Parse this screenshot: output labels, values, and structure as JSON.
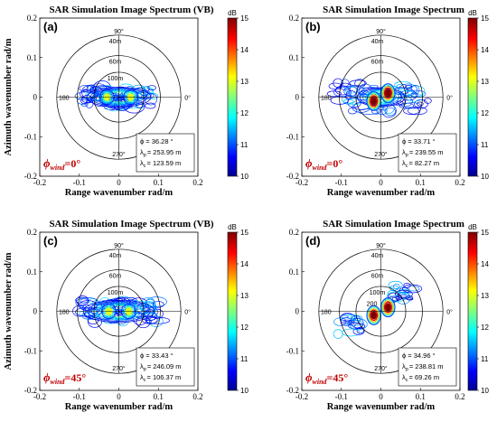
{
  "chart_data": [
    {
      "type": "contour",
      "panel": "(a)",
      "title": "SAR Simulation Image Spectrum (VB)",
      "xlabel": "Range wavenumber rad/m",
      "ylabel": "Azimuth wavenumber rad/m",
      "xlim": [
        -0.2,
        0.2
      ],
      "ylim": [
        -0.2,
        0.2
      ],
      "xticks": [
        "-0.2",
        "-0.1",
        "0",
        "0.1",
        "0.2"
      ],
      "yticks": [
        "0.2",
        "0.1",
        "0",
        "-0.1",
        "-0.2"
      ],
      "rings": [
        {
          "wavenumber": 0.157,
          "label": ""
        },
        {
          "wavenumber": 0.105,
          "label": "60m"
        },
        {
          "wavenumber": 0.063,
          "label": "100m"
        }
      ],
      "ring_label_40m": "40m",
      "direction_labels": {
        "top": "90°",
        "left": "180",
        "right": "0°",
        "bottom": "270°"
      },
      "colorbar": {
        "unit": "dB",
        "min": 10,
        "max": 15,
        "ticks": [
          10,
          11,
          12,
          13,
          14,
          15
        ]
      },
      "info": {
        "phi": "ϕ = 36.28 °",
        "lp": "= 253.95 m",
        "lc": "= 123.59 m"
      },
      "wind": {
        "symbol": "ϕ",
        "sub": "wind",
        "value": "=0°"
      },
      "spectrum": {
        "shape": "elongated-range",
        "spread_x": 0.09,
        "spread_y": 0.025,
        "peaks": [
          [
            -0.03,
            0.0
          ],
          [
            0.03,
            0.0
          ]
        ],
        "peak_level_db": 13
      }
    },
    {
      "type": "contour",
      "panel": "(b)",
      "title": "SAR Simulation Image Spectrum",
      "xlabel": "Range wavenumber rad/m",
      "ylabel": "",
      "xlim": [
        -0.2,
        0.2
      ],
      "ylim": [
        -0.2,
        0.2
      ],
      "xticks": [
        "-0.2",
        "-0.1",
        "0",
        "0.1",
        "0.2"
      ],
      "yticks": [
        "0.2",
        "0.1",
        "0",
        "-0.1",
        "-0.2"
      ],
      "rings": [
        {
          "wavenumber": 0.157,
          "label": "40m"
        },
        {
          "wavenumber": 0.105,
          "label": "60m"
        },
        {
          "wavenumber": 0.063,
          "label": ""
        }
      ],
      "direction_labels": {
        "top": "90°",
        "left": "180",
        "right": "0°",
        "bottom": "270°"
      },
      "colorbar": {
        "unit": "dB",
        "min": 10,
        "max": 15,
        "ticks": [
          10,
          11,
          12,
          13,
          14,
          15
        ]
      },
      "info": {
        "phi": "ϕ = 33.71 °",
        "lp": "= 239.55 m",
        "lc": "= 82.27 m"
      },
      "wind": {
        "symbol": "ϕ",
        "sub": "wind",
        "value": "=0°"
      },
      "spectrum": {
        "shape": "two-peaks",
        "spread_x": 0.12,
        "spread_y": 0.04,
        "peaks": [
          [
            -0.018,
            -0.01
          ],
          [
            0.018,
            0.01
          ]
        ],
        "peak_level_db": 15
      }
    },
    {
      "type": "contour",
      "panel": "(c)",
      "title": "SAR Simulation Image Spectrum (VB)",
      "xlabel": "Range wavenumber rad/m",
      "ylabel": "Azimuth wavenumber rad/m",
      "xlim": [
        -0.2,
        0.2
      ],
      "ylim": [
        -0.2,
        0.2
      ],
      "xticks": [
        "-0.2",
        "-0.1",
        "0",
        "0.1",
        "0.2"
      ],
      "yticks": [
        "0.2",
        "0.1",
        "0",
        "-0.1",
        "-0.2"
      ],
      "rings": [
        {
          "wavenumber": 0.157,
          "label": "40m"
        },
        {
          "wavenumber": 0.105,
          "label": "60m"
        },
        {
          "wavenumber": 0.063,
          "label": "100m"
        }
      ],
      "direction_labels": {
        "top": "90°",
        "left": "180",
        "right": "0°",
        "bottom": "270°"
      },
      "colorbar": {
        "unit": "dB",
        "min": 10,
        "max": 15,
        "ticks": [
          10,
          11,
          12,
          13,
          14,
          15
        ]
      },
      "info": {
        "phi": "ϕ = 33.43 °",
        "lp": "= 246.09 m",
        "lc": "= 106.37 m"
      },
      "wind": {
        "symbol": "ϕ",
        "sub": "wind",
        "value": "=45°"
      },
      "spectrum": {
        "shape": "elongated-range",
        "spread_x": 0.1,
        "spread_y": 0.028,
        "peaks": [
          [
            -0.025,
            0.0
          ],
          [
            0.025,
            0.0
          ]
        ],
        "peak_level_db": 13
      }
    },
    {
      "type": "contour",
      "panel": "(d)",
      "title": "SAR Simulation Image Spectrum",
      "xlabel": "Range wavenumber rad/m",
      "ylabel": "",
      "xlim": [
        -0.2,
        0.2
      ],
      "ylim": [
        -0.2,
        0.2
      ],
      "xticks": [
        "-0.2",
        "-0.1",
        "0",
        "0.1",
        "0.2"
      ],
      "yticks": [
        "0.2",
        "0.1",
        "0",
        "-0.1",
        "-0.2"
      ],
      "rings": [
        {
          "wavenumber": 0.157,
          "label": "40m"
        },
        {
          "wavenumber": 0.105,
          "label": "60m"
        },
        {
          "wavenumber": 0.063,
          "label": "100m"
        }
      ],
      "ring_label_inner": "200",
      "direction_labels": {
        "top": "90°",
        "left": "180",
        "right": "0°",
        "bottom": "270°"
      },
      "colorbar": {
        "unit": "dB",
        "min": 10,
        "max": 15,
        "ticks": [
          10,
          11,
          12,
          13,
          14,
          15
        ]
      },
      "info": {
        "phi": "ϕ = 34.96 °",
        "lp": "= 238.81 m",
        "lc": "= 69.26 m"
      },
      "wind": {
        "symbol": "ϕ",
        "sub": "wind",
        "value": "=45°"
      },
      "spectrum": {
        "shape": "diagonal-lobes",
        "spread_x": 0.06,
        "spread_y": 0.045,
        "peaks": [
          [
            -0.018,
            -0.01
          ],
          [
            0.018,
            0.01
          ]
        ],
        "lobes": [
          [
            -0.08,
            -0.035
          ],
          [
            0.055,
            0.045
          ]
        ],
        "peak_level_db": 15
      }
    }
  ]
}
